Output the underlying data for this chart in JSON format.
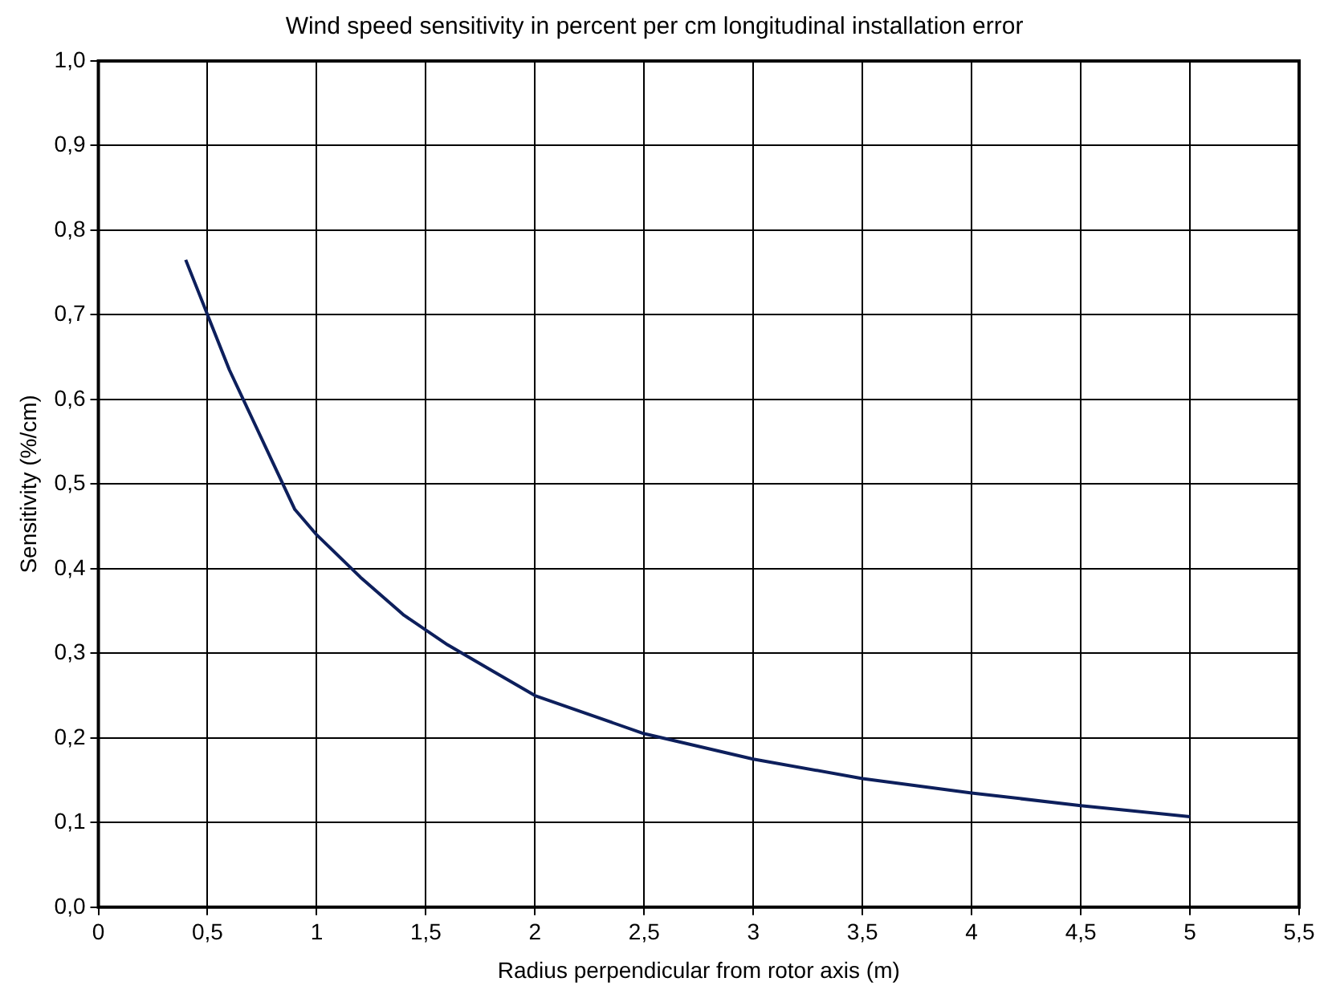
{
  "chart_data": {
    "type": "line",
    "title": "Wind speed sensitivity in percent per cm longitudinal installation error",
    "xlabel": "Radius perpendicular from rotor axis (m)",
    "ylabel": "Sensitivity (%/cm)",
    "x": [
      0.4,
      0.5,
      0.6,
      0.7,
      0.8,
      0.9,
      1.0,
      1.2,
      1.4,
      1.6,
      1.8,
      2.0,
      2.5,
      3.0,
      3.5,
      4.0,
      4.5,
      5.0
    ],
    "series": [
      {
        "color": "#0d1f5c",
        "values": [
          0.765,
          0.7,
          0.635,
          0.58,
          0.525,
          0.47,
          0.44,
          0.39,
          0.345,
          0.31,
          0.28,
          0.25,
          0.205,
          0.175,
          0.152,
          0.135,
          0.12,
          0.107
        ]
      }
    ],
    "xlim": [
      0,
      5.5
    ],
    "xticks": [
      0,
      {
        "value": 0.5,
        "label": "0,5"
      },
      1,
      {
        "value": 1.5,
        "label": "1,5"
      },
      2,
      {
        "value": 2.5,
        "label": "2,5"
      },
      3,
      {
        "value": 3.5,
        "label": "3,5"
      },
      4,
      {
        "value": 4.5,
        "label": "4,5"
      },
      5,
      {
        "value": 5.5,
        "label": "5,5"
      }
    ],
    "ylim": [
      0,
      1
    ],
    "yticks": [
      {
        "value": 0,
        "label": "0,0"
      },
      {
        "value": 0.1,
        "label": "0,1"
      },
      {
        "value": 0.2,
        "label": "0,2"
      },
      {
        "value": 0.3,
        "label": "0,3"
      },
      {
        "value": 0.4,
        "label": "0,4"
      },
      {
        "value": 0.5,
        "label": "0,5"
      },
      {
        "value": 0.6,
        "label": "0,6"
      },
      {
        "value": 0.7,
        "label": "0,7"
      },
      {
        "value": 0.8,
        "label": "0,8"
      },
      {
        "value": 0.9,
        "label": "0,9"
      },
      {
        "value": 1,
        "label": "1,0"
      }
    ],
    "grid": true,
    "legend": false,
    "marker": "none",
    "line_style": "solid"
  }
}
